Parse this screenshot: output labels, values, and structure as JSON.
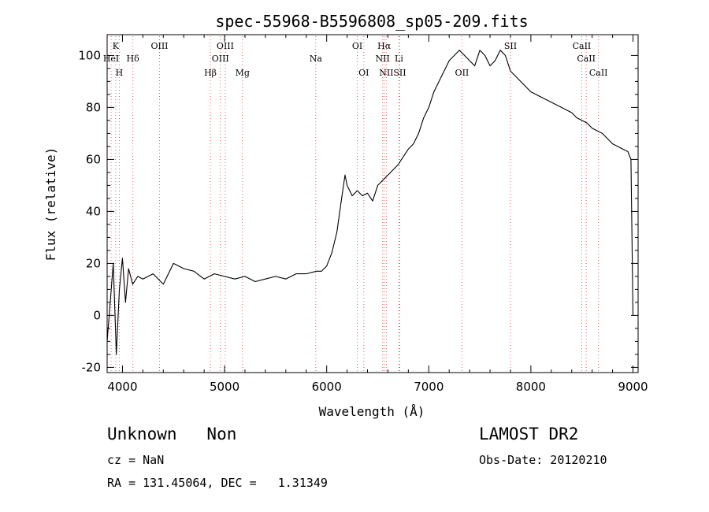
{
  "chart_data": {
    "type": "line",
    "title": "spec-55968-B5596808_sp05-209.fits",
    "xlabel": "Wavelength (Å)",
    "ylabel": "Flux (relative)",
    "xlim": [
      3850,
      9050
    ],
    "ylim": [
      -22,
      108
    ],
    "x_ticks": [
      4000,
      5000,
      6000,
      7000,
      8000,
      9000
    ],
    "y_ticks": [
      -20,
      0,
      20,
      40,
      60,
      80,
      100
    ],
    "grid": false,
    "series": [
      {
        "x": [
          3850,
          3880,
          3910,
          3940,
          3970,
          4000,
          4030,
          4060,
          4100,
          4150,
          4200,
          4300,
          4400,
          4500,
          4600,
          4700,
          4800,
          4900,
          5000,
          5100,
          5200,
          5300,
          5400,
          5500,
          5600,
          5700,
          5800,
          5900,
          5950,
          6000,
          6050,
          6100,
          6150,
          6180,
          6200,
          6250,
          6300,
          6350,
          6400,
          6450,
          6500,
          6550,
          6600,
          6650,
          6700,
          6750,
          6800,
          6850,
          6900,
          6950,
          7000,
          7050,
          7100,
          7150,
          7200,
          7250,
          7300,
          7350,
          7400,
          7450,
          7500,
          7550,
          7600,
          7650,
          7700,
          7750,
          7800,
          7850,
          7900,
          7950,
          8000,
          8050,
          8100,
          8150,
          8200,
          8250,
          8300,
          8350,
          8400,
          8450,
          8500,
          8550,
          8600,
          8650,
          8700,
          8750,
          8800,
          8850,
          8900,
          8950,
          8980,
          9000
        ],
        "y": [
          -10,
          5,
          20,
          -15,
          10,
          22,
          5,
          18,
          12,
          15,
          14,
          16,
          12,
          20,
          18,
          17,
          14,
          16,
          15,
          14,
          15,
          13,
          14,
          15,
          14,
          16,
          16,
          17,
          17,
          19,
          24,
          32,
          46,
          54,
          50,
          46,
          48,
          46,
          47,
          44,
          50,
          52,
          54,
          56,
          58,
          61,
          64,
          66,
          70,
          76,
          80,
          86,
          90,
          94,
          98,
          100,
          102,
          100,
          98,
          96,
          102,
          100,
          96,
          98,
          102,
          100,
          94,
          92,
          90,
          88,
          86,
          85,
          84,
          83,
          82,
          81,
          80,
          79,
          78,
          76,
          75,
          74,
          72,
          71,
          70,
          68,
          66,
          65,
          64,
          63,
          60,
          0
        ]
      }
    ],
    "spectral_lines": [
      {
        "label": "K",
        "x": 3934,
        "row": 0
      },
      {
        "label": "HeI",
        "x": 3889,
        "row": 1
      },
      {
        "label": "H",
        "x": 3969,
        "row": 2
      },
      {
        "label": "Hδ",
        "x": 4102,
        "row": 1
      },
      {
        "label": "OIII",
        "x": 4363,
        "row": 0
      },
      {
        "label": "OIII",
        "x": 5007,
        "row": 0
      },
      {
        "label": "OIII",
        "x": 4959,
        "row": 1
      },
      {
        "label": "Hβ",
        "x": 4861,
        "row": 2
      },
      {
        "label": "Mg",
        "x": 5175,
        "row": 2
      },
      {
        "label": "Na",
        "x": 5893,
        "row": 1
      },
      {
        "label": "OI",
        "x": 6300,
        "row": 0
      },
      {
        "label": "OI",
        "x": 6364,
        "row": 2
      },
      {
        "label": "Hα",
        "x": 6563,
        "row": 0
      },
      {
        "label": "NII",
        "x": 6548,
        "row": 1
      },
      {
        "label": "NII",
        "x": 6584,
        "row": 2
      },
      {
        "label": "Li",
        "x": 6708,
        "row": 1
      },
      {
        "label": "SII",
        "x": 6716,
        "row": 2
      },
      {
        "label": "OII",
        "x": 7325,
        "row": 2
      },
      {
        "label": "SII",
        "x": 7800,
        "row": 0
      },
      {
        "label": "CaII",
        "x": 8498,
        "row": 0
      },
      {
        "label": "CaII",
        "x": 8542,
        "row": 1
      },
      {
        "label": "CaII",
        "x": 8662,
        "row": 2
      }
    ],
    "line_marker_color": "#e06060",
    "series_color": "#000000"
  },
  "info": {
    "class_text": "Unknown   Non",
    "cz_text": "cz = NaN",
    "coords_text": "RA = 131.45064, DEC =   1.31349",
    "survey_text": "LAMOST DR2",
    "obs_date_text": "Obs-Date: 20120210"
  }
}
